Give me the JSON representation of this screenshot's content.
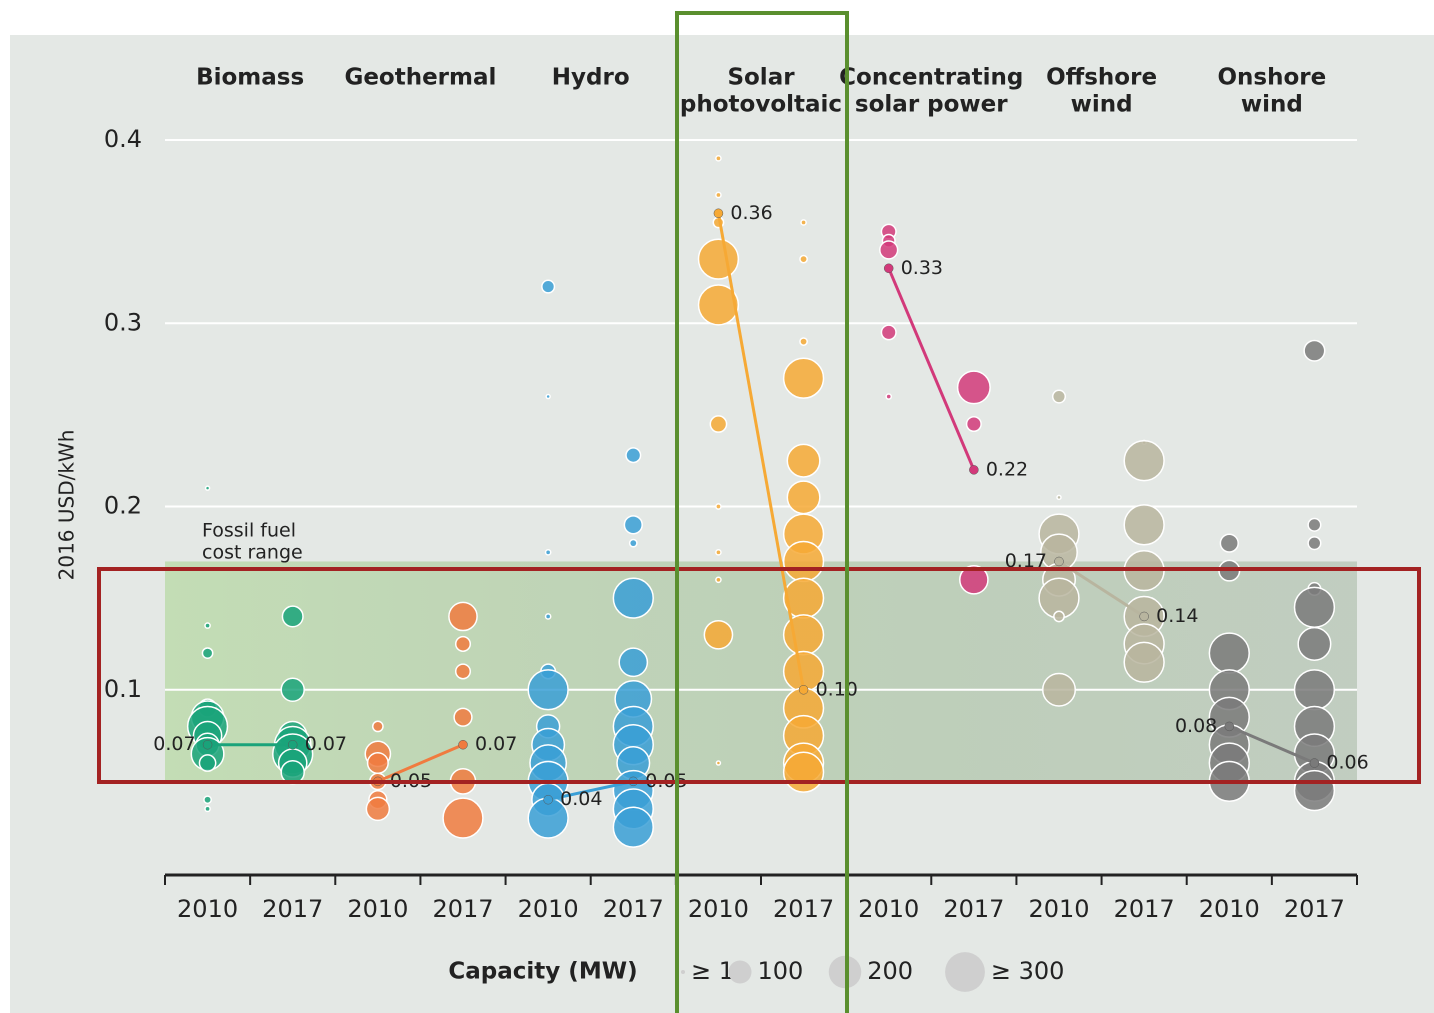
{
  "chart_data": {
    "type": "bubble",
    "ylabel": "2016 USD/kWh",
    "ylim": [
      0,
      0.4
    ],
    "yticks": [
      0.1,
      0.2,
      0.3,
      0.4
    ],
    "grid": true,
    "categories": [
      "2010",
      "2017"
    ],
    "band": {
      "label": [
        "Fossil fuel",
        "cost range"
      ],
      "range": [
        0.05,
        0.17
      ],
      "color": "#a8d48e"
    },
    "legend": {
      "title": "Capacity (MW)",
      "sizes": [
        {
          "value": 1,
          "label": "≥ 1"
        },
        100,
        200,
        {
          "value": 300,
          "label": "≥ 300"
        }
      ]
    },
    "groups": [
      {
        "name": [
          "Biomass"
        ],
        "color": "#1aa37a",
        "values": [
          0.07,
          0.07
        ],
        "bubbles": [
          {
            "values": [
              0.21,
              0.135,
              0.12,
              0.09,
              0.085,
              0.08,
              0.075,
              0.07,
              0.065,
              0.06,
              0.04,
              0.035
            ],
            "sizes": [
              1,
              5,
              20,
              60,
              200,
              300,
              150,
              100,
              200,
              50,
              10,
              5
            ]
          },
          {
            "values": [
              0.14,
              0.1,
              0.075,
              0.07,
              0.065,
              0.06,
              0.055
            ],
            "sizes": [
              80,
              100,
              150,
              250,
              300,
              150,
              100
            ]
          }
        ]
      },
      {
        "name": [
          "Geothermal"
        ],
        "color": "#f07b3f",
        "values": [
          0.05,
          0.07
        ],
        "bubbles": [
          {
            "values": [
              0.08,
              0.065,
              0.06,
              0.05,
              0.04,
              0.035
            ],
            "sizes": [
              20,
              120,
              80,
              50,
              60,
              100
            ]
          },
          {
            "values": [
              0.14,
              0.125,
              0.11,
              0.085,
              0.05,
              0.03
            ],
            "sizes": [
              150,
              40,
              40,
              60,
              120,
              300
            ]
          }
        ]
      },
      {
        "name": [
          "Hydro"
        ],
        "color": "#3a9fd6",
        "values": [
          0.04,
          0.05
        ],
        "bubbles": [
          {
            "values": [
              0.32,
              0.26,
              0.175,
              0.14,
              0.11,
              0.1,
              0.08,
              0.07,
              0.06,
              0.05,
              0.04,
              0.03
            ],
            "sizes": [
              30,
              1,
              5,
              5,
              40,
              300,
              100,
              200,
              250,
              300,
              200,
              300
            ]
          },
          {
            "values": [
              0.228,
              0.19,
              0.18,
              0.15,
              0.115,
              0.095,
              0.08,
              0.07,
              0.06,
              0.045,
              0.035,
              0.025
            ],
            "sizes": [
              40,
              60,
              10,
              300,
              150,
              250,
              300,
              300,
              200,
              300,
              300,
              300
            ]
          }
        ]
      },
      {
        "name": [
          "Solar",
          "photovoltaic"
        ],
        "color": "#f6a935",
        "values": [
          0.36,
          0.1
        ],
        "value_labels": [
          "0.36",
          "0.10"
        ],
        "bubbles": [
          {
            "values": [
              0.39,
              0.37,
              0.355,
              0.335,
              0.31,
              0.245,
              0.2,
              0.175,
              0.16,
              0.13,
              0.06
            ],
            "sizes": [
              5,
              5,
              20,
              300,
              300,
              50,
              5,
              5,
              5,
              150,
              1
            ]
          },
          {
            "values": [
              0.355,
              0.335,
              0.29,
              0.27,
              0.225,
              0.205,
              0.185,
              0.17,
              0.15,
              0.13,
              0.11,
              0.09,
              0.075,
              0.06,
              0.055
            ],
            "sizes": [
              5,
              10,
              10,
              300,
              200,
              200,
              300,
              300,
              300,
              300,
              300,
              300,
              300,
              300,
              300
            ]
          }
        ]
      },
      {
        "name": [
          "Concentrating",
          "solar power"
        ],
        "color": "#d2397a",
        "values": [
          0.33,
          0.22
        ],
        "bubbles": [
          {
            "values": [
              0.35,
              0.345,
              0.34,
              0.33,
              0.295,
              0.26
            ],
            "sizes": [
              40,
              30,
              60,
              10,
              40,
              5
            ]
          },
          {
            "values": [
              0.265,
              0.245,
              0.22,
              0.16
            ],
            "sizes": [
              200,
              40,
              10,
              150
            ]
          }
        ]
      },
      {
        "name": [
          "Offshore",
          "wind"
        ],
        "color": "#b8b59f",
        "values": [
          0.17,
          0.14
        ],
        "bubbles": [
          {
            "values": [
              0.26,
              0.205,
              0.185,
              0.175,
              0.16,
              0.15,
              0.14,
              0.1
            ],
            "sizes": [
              30,
              1,
              300,
              250,
              200,
              300,
              20,
              200
            ]
          },
          {
            "values": [
              0.235,
              0.225,
              0.19,
              0.165,
              0.14,
              0.125,
              0.115
            ],
            "sizes": [
              1,
              300,
              300,
              300,
              300,
              300,
              300
            ]
          }
        ]
      },
      {
        "name": [
          "Onshore",
          "wind"
        ],
        "color": "#7a7a7a",
        "values": [
          0.08,
          0.06
        ],
        "bubbles": [
          {
            "values": [
              0.18,
              0.165,
              0.12,
              0.1,
              0.085,
              0.07,
              0.06,
              0.05
            ],
            "sizes": [
              60,
              80,
              300,
              300,
              300,
              300,
              300,
              300
            ]
          },
          {
            "values": [
              0.285,
              0.19,
              0.18,
              0.155,
              0.145,
              0.125,
              0.1,
              0.08,
              0.065,
              0.05,
              0.045
            ],
            "sizes": [
              80,
              30,
              30,
              30,
              300,
              200,
              300,
              300,
              300,
              300,
              300
            ]
          }
        ]
      }
    ]
  }
}
